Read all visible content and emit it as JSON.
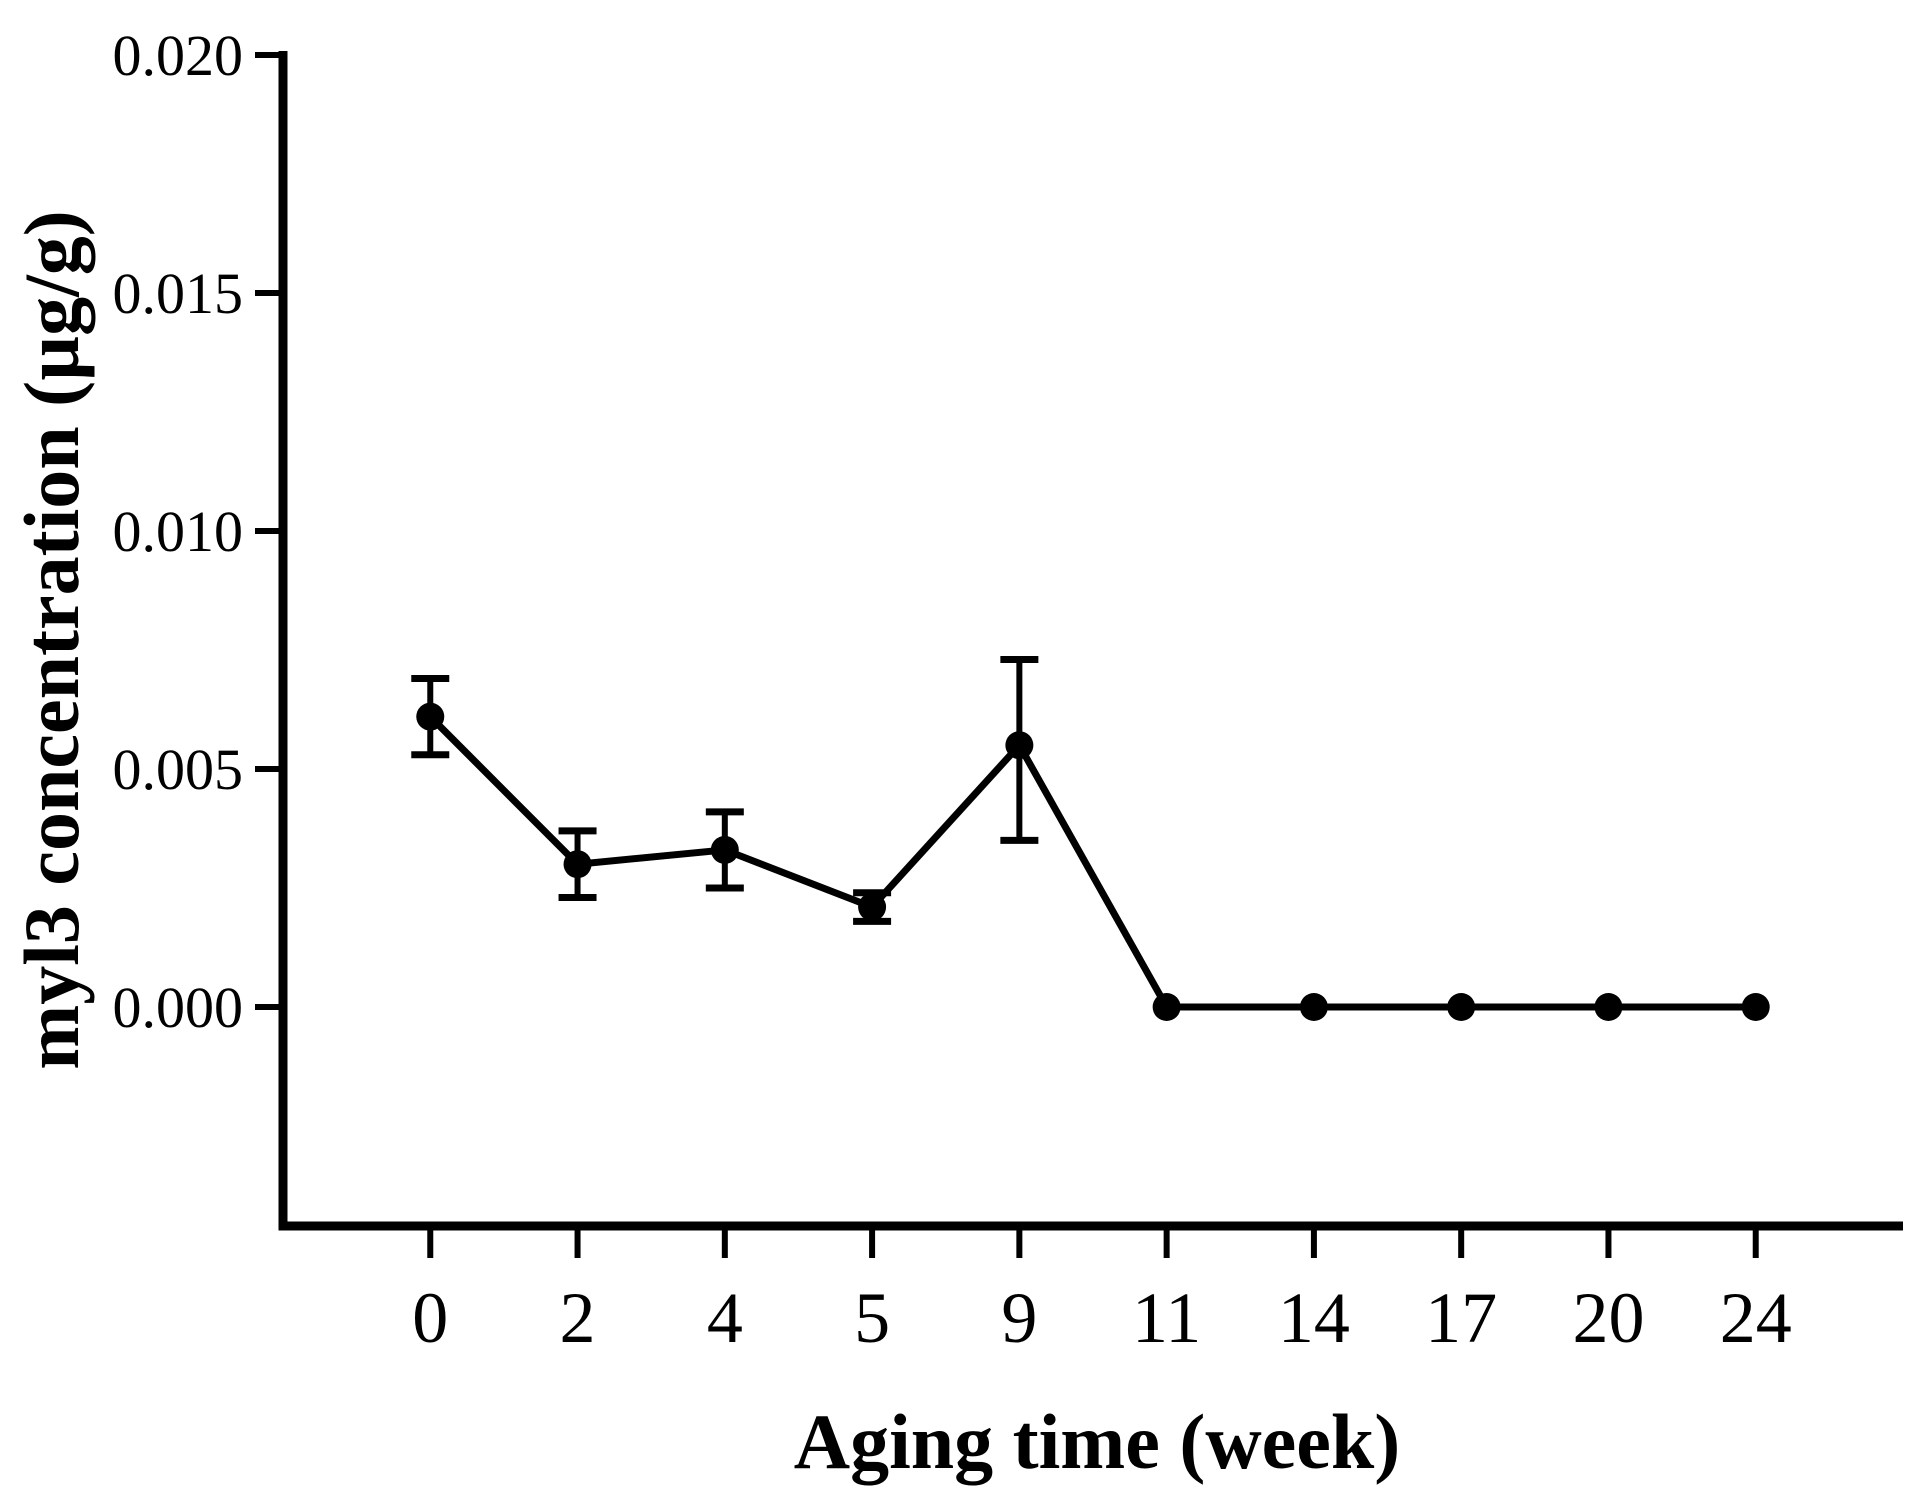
{
  "figure": {
    "background": "#ffffff",
    "ink_color": "#000000"
  },
  "chart_data": {
    "type": "line",
    "title": "",
    "xlabel": "Aging time (week)",
    "ylabel": "myl3 concentration (µg/g)",
    "categories": [
      "0",
      "2",
      "4",
      "5",
      "9",
      "11",
      "14",
      "17",
      "20",
      "24"
    ],
    "series": [
      {
        "name": "myl3 concentration",
        "color": "#000000",
        "marker": "filled-circle",
        "values": [
          0.0061,
          0.003,
          0.0033,
          0.0021,
          0.0055,
          0.0,
          0.0,
          0.0,
          0.0,
          0.0
        ],
        "error_upper": [
          0.0069,
          0.0037,
          0.0041,
          0.0024,
          0.0073,
          null,
          null,
          null,
          null,
          null
        ],
        "error_lower": [
          0.0053,
          0.0023,
          0.0025,
          0.0018,
          0.0035,
          null,
          null,
          null,
          null,
          null
        ]
      }
    ],
    "y_ticks": [
      "0.000",
      "0.005",
      "0.010",
      "0.015",
      "0.020"
    ],
    "ylim": [
      -0.0046,
      0.02
    ],
    "xaxis_type": "categorical",
    "grid": false,
    "legend_position": "none"
  }
}
